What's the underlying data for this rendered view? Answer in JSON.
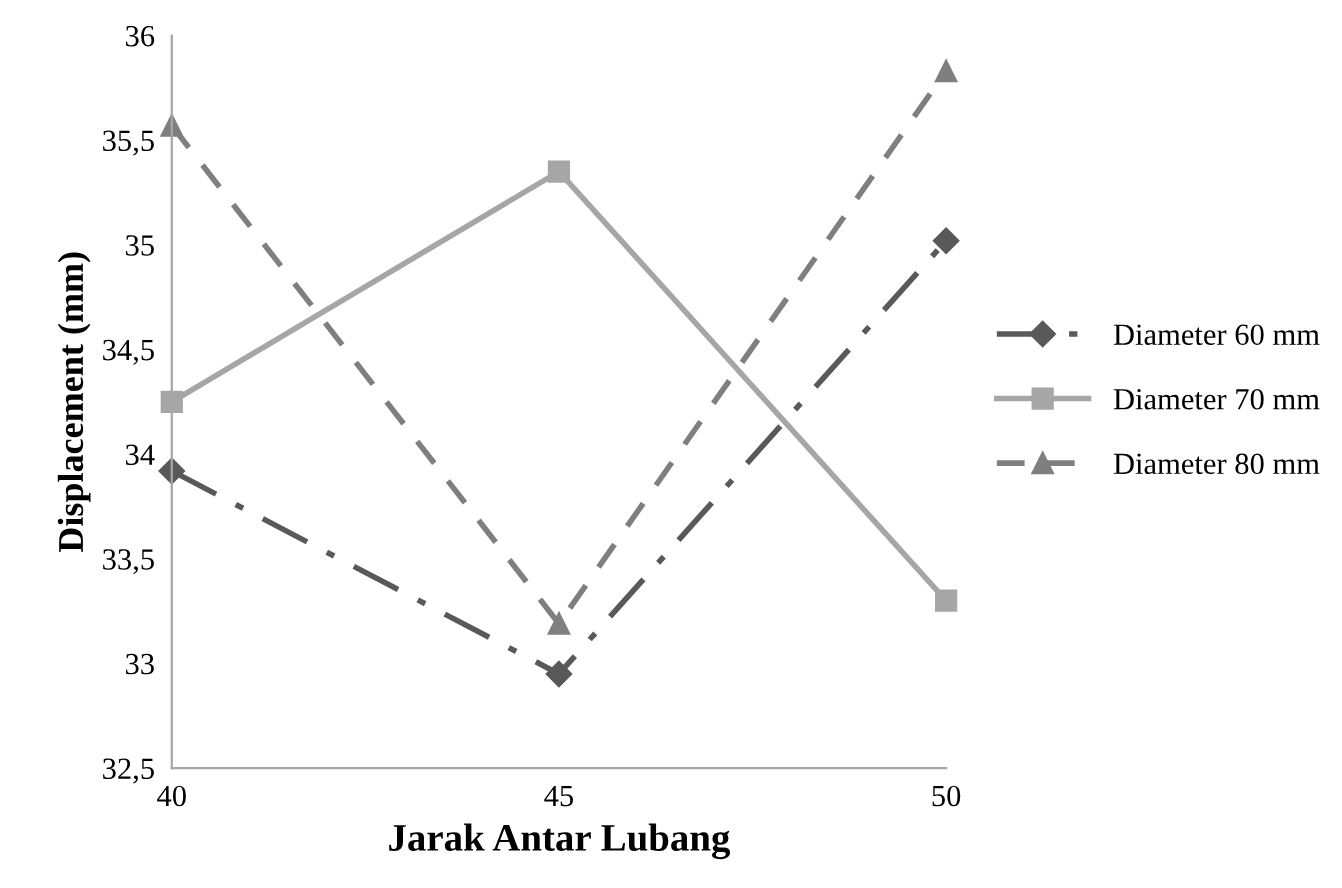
{
  "chart_data": {
    "type": "line",
    "xlabel": "Jarak Antar Lubang",
    "ylabel": "Displacement (mm)",
    "x": [
      40,
      45,
      50
    ],
    "xlim": [
      40,
      50
    ],
    "xticks": [
      40,
      45,
      50
    ],
    "ylim": [
      32.5,
      36
    ],
    "yticks": [
      {
        "value": 32.5,
        "label": "32,5"
      },
      33,
      {
        "value": 33.5,
        "label": "33,5"
      },
      34,
      {
        "value": 34.5,
        "label": "34,5"
      },
      35,
      {
        "value": 35.5,
        "label": "35,5"
      },
      36
    ],
    "grid": false,
    "legend": "right",
    "series": [
      {
        "name": "Diameter 60 mm",
        "color": "#595959",
        "marker": "diamond",
        "line_style": "dashdot",
        "values": [
          33.92,
          32.95,
          35.02
        ]
      },
      {
        "name": "Diameter 70 mm",
        "color": "#a6a6a6",
        "marker": "square",
        "line_style": "solid",
        "values": [
          34.25,
          35.35,
          33.3
        ]
      },
      {
        "name": "Diameter 80 mm",
        "color": "#7f7f7f",
        "marker": "triangle",
        "line_style": "dashed",
        "values": [
          35.57,
          33.19,
          35.83
        ]
      }
    ]
  }
}
